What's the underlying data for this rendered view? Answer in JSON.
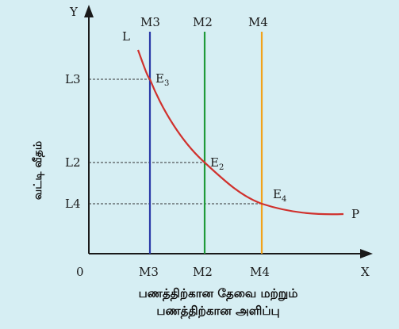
{
  "diagram": {
    "axes": {
      "y_axis_letter": "Y",
      "x_axis_letter": "X",
      "origin": "0"
    },
    "y_axis_title": "வட்டி வீதம்",
    "x_axis_title": [
      "பணத்திற்கான தேவை மற்றும்",
      "பணத்திற்கான அளிப்பு"
    ],
    "curve": {
      "start_label": "L",
      "end_label": "P",
      "color": "#d0312d"
    },
    "supply_lines": [
      {
        "label": "M3",
        "color": "#2b3aa8"
      },
      {
        "label": "M2",
        "color": "#1f9a3a"
      },
      {
        "label": "M4",
        "color": "#f2a21a"
      }
    ],
    "rate_levels": [
      {
        "label": "L3"
      },
      {
        "label": "L2"
      },
      {
        "label": "L4"
      }
    ],
    "equilibria": [
      {
        "letter": "E",
        "sub": "3"
      },
      {
        "letter": "E",
        "sub": "2"
      },
      {
        "letter": "E",
        "sub": "4"
      }
    ]
  }
}
